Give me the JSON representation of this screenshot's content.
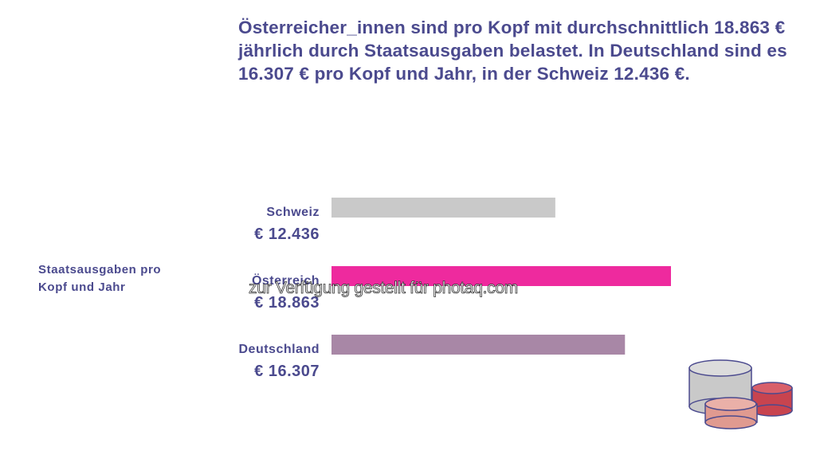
{
  "chart_data": {
    "type": "bar",
    "orientation": "horizontal",
    "title": "Österreicher_innen sind pro Kopf mit durchschnittlich 18.863 € jährlich durch Staatsausgaben belastet. In Deutschland sind es 16.307 € pro Kopf und Jahr, in der Schweiz 12.436 €.",
    "axis_label": "Staatsausgaben pro Kopf und Jahr",
    "categories": [
      "Schweiz",
      "Österreich",
      "Deutschland"
    ],
    "values": [
      12436,
      18863,
      16307
    ],
    "value_labels": [
      "€ 12.436",
      "€ 18.863",
      "€ 16.307"
    ],
    "colors": [
      "#c9c9c9",
      "#ee2a9e",
      "#a887a6"
    ],
    "watermark": "zur Verfügung gestellt für photaq.com"
  }
}
